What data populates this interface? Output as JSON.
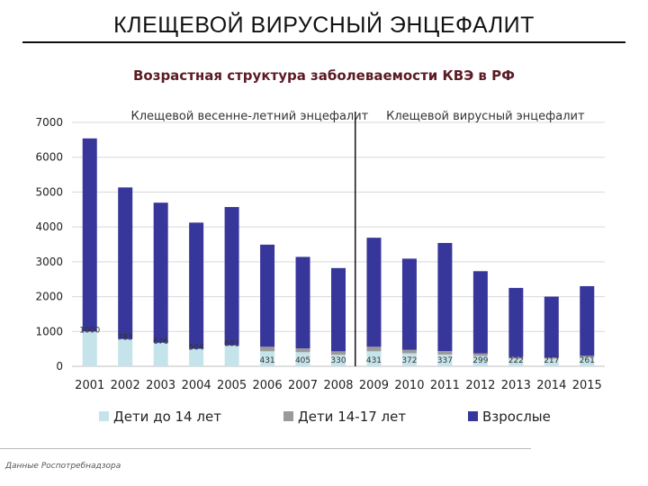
{
  "slide": {
    "title": "КЛЕЩЕВОЙ ВИРУСНЫЙ ЭНЦЕФАЛИТ",
    "source": "Данные Роспотребнадзора"
  },
  "chart_data": {
    "type": "bar",
    "stacked": true,
    "title": "Возрастная структура заболеваемости КВЭ в РФ",
    "categories": [
      "2001",
      "2002",
      "2003",
      "2004",
      "2005",
      "2006",
      "2007",
      "2008",
      "2009",
      "2010",
      "2011",
      "2012",
      "2013",
      "2014",
      "2015"
    ],
    "series": [
      {
        "name": "Дети до 14 лет",
        "color": "#c5e3ea",
        "values": [
          1000,
          783,
          676,
          504,
          601,
          431,
          405,
          330,
          431,
          372,
          337,
          299,
          222,
          217,
          261
        ],
        "labels": [
          "1000",
          "783",
          "676",
          "504",
          "601",
          "431",
          "405",
          "330",
          "431",
          "372",
          "337",
          "299",
          "222",
          "217",
          "261"
        ]
      },
      {
        "name": "Дети 14-17 лет",
        "color": "#9a9a9a",
        "values": [
          0,
          0,
          0,
          0,
          0,
          130,
          110,
          100,
          130,
          100,
          100,
          70,
          50,
          40,
          40
        ]
      },
      {
        "name": "Взрослые",
        "color": "#37369b",
        "values": [
          5540,
          4350,
          4020,
          3620,
          3970,
          2930,
          2625,
          2390,
          3129,
          2618,
          3103,
          2361,
          1978,
          1743,
          1999
        ]
      }
    ],
    "ylim": [
      0,
      7000
    ],
    "yticks": [
      0,
      1000,
      2000,
      3000,
      4000,
      5000,
      6000,
      7000
    ],
    "grid": true,
    "legend_position": "bottom",
    "period_labels": [
      "Клещевой весенне-летний энцефалит",
      "Клещевой вирусный энцефалит"
    ],
    "divider_between": [
      "2008",
      "2009"
    ]
  }
}
